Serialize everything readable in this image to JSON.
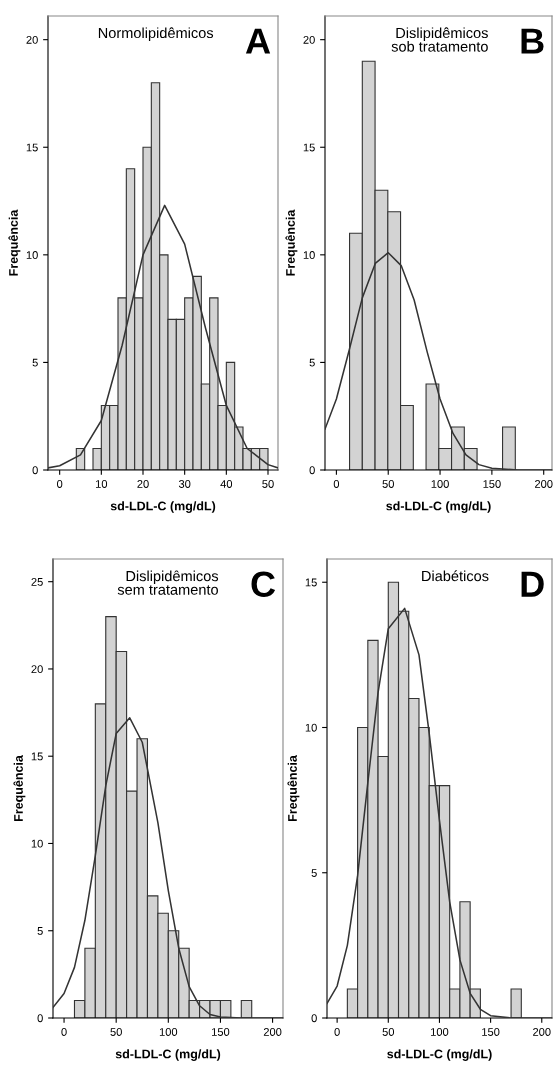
{
  "chart_data": [
    {
      "type": "histogram",
      "title": "Normolipidêmicos",
      "annotations": [
        "A"
      ],
      "xlabel": "sd-LDL-C (mg/dL)",
      "ylabel": "Frequência",
      "xlim": [
        -2.8,
        52.4
      ],
      "ylim": [
        0,
        21.1
      ],
      "xticks": [
        0,
        10,
        20,
        30,
        40,
        50
      ],
      "yticks": [
        0,
        5,
        10,
        15,
        20
      ],
      "grid": false,
      "legend": false,
      "series": [
        {
          "color": "#d3d3d3",
          "bins": [
            4,
            6,
            8,
            10,
            12,
            14,
            16,
            18,
            20,
            22,
            24,
            26,
            28,
            30,
            32,
            34,
            36,
            38,
            40,
            42,
            44,
            46,
            48,
            50
          ],
          "values": [
            1,
            0,
            1,
            3,
            3,
            8,
            14,
            8,
            15,
            18,
            10,
            7,
            7,
            8,
            9,
            4,
            8,
            3,
            5,
            2,
            1,
            1,
            1
          ]
        },
        {
          "type": "line",
          "color": "#333333",
          "x": [
            -2.8,
            0,
            5,
            10,
            15,
            20,
            25.2,
            30,
            35,
            40,
            45,
            50,
            52.4
          ],
          "values": [
            0.1,
            0.2,
            0.7,
            2.3,
            5.8,
            10.0,
            12.3,
            10.5,
            6.6,
            3.0,
            1.0,
            0.25,
            0.1
          ]
        }
      ]
    },
    {
      "type": "histogram",
      "title": "Dislipidêmicos\nsob tratamento",
      "annotations": [
        "B"
      ],
      "xlabel": "sd-LDL-C (mg/dL)",
      "ylabel": "Frequência",
      "xlim": [
        -11,
        208
      ],
      "ylim": [
        0,
        21.1
      ],
      "xticks": [
        0,
        50,
        100,
        150,
        200
      ],
      "yticks": [
        0,
        5,
        10,
        15,
        20
      ],
      "grid": false,
      "legend": false,
      "series": [
        {
          "color": "#d3d3d3",
          "bins": [
            12.7,
            25,
            37.3,
            49.6,
            61.9,
            74.2,
            86.5,
            98.8,
            111.1,
            123.4,
            135.7,
            148,
            160.3,
            172.6
          ],
          "values": [
            11,
            19,
            13,
            12,
            3,
            0,
            4,
            1,
            2,
            1,
            0,
            0,
            2
          ]
        },
        {
          "type": "line",
          "color": "#333333",
          "x": [
            -11,
            0,
            12.5,
            25,
            37.5,
            50,
            62.5,
            75,
            87.5,
            100,
            112.5,
            125,
            137.5,
            150,
            175,
            208
          ],
          "values": [
            1.9,
            3.3,
            5.6,
            8.0,
            9.6,
            10.1,
            9.5,
            7.9,
            5.5,
            3.3,
            1.7,
            0.7,
            0.25,
            0.08,
            0,
            0
          ]
        }
      ]
    },
    {
      "type": "histogram",
      "title": "Dislipidêmicos\nsem tratamento",
      "annotations": [
        "C"
      ],
      "xlabel": "sd-LDL-C (mg/dL)",
      "ylabel": "Frequência",
      "xlim": [
        -10.6,
        210
      ],
      "ylim": [
        0,
        26.3
      ],
      "xticks": [
        0,
        50,
        100,
        150,
        200
      ],
      "yticks": [
        0,
        5,
        10,
        15,
        20,
        25
      ],
      "grid": false,
      "legend": false,
      "series": [
        {
          "type": "histogram",
          "color": "#d3d3d3",
          "bins": [
            10,
            20,
            30,
            40,
            50,
            60,
            70,
            80,
            90,
            100,
            110,
            120,
            130,
            140,
            150,
            160,
            170,
            180
          ],
          "values": [
            1,
            4,
            18,
            23,
            21,
            13,
            16,
            7,
            6,
            5,
            4,
            1,
            1,
            1,
            1,
            0,
            1
          ]
        },
        {
          "type": "line",
          "color": "#333333",
          "x": [
            -10.6,
            0,
            10,
            20,
            30,
            40,
            50,
            63,
            75,
            90,
            100,
            110,
            120,
            130,
            140,
            150,
            170,
            210
          ],
          "values": [
            0.6,
            1.4,
            2.9,
            5.6,
            9.3,
            13.3,
            16.3,
            17.2,
            15.8,
            11.2,
            7.3,
            4.0,
            1.8,
            0.7,
            0.2,
            0.06,
            0,
            0
          ]
        }
      ]
    },
    {
      "type": "histogram",
      "title": "Diabéticos",
      "annotations": [
        "D"
      ],
      "xlabel": "sd-LDL-C (mg/dL)",
      "ylabel": "Frequência",
      "xlim": [
        -9.9,
        210
      ],
      "ylim": [
        0,
        15.8
      ],
      "xticks": [
        0,
        50,
        100,
        150,
        200
      ],
      "yticks": [
        0,
        5,
        10,
        15
      ],
      "grid": false,
      "legend": false,
      "series": [
        {
          "type": "histogram",
          "color": "#d3d3d3",
          "bins": [
            10,
            20,
            30,
            40,
            50,
            60,
            70,
            80,
            90,
            100,
            110,
            120,
            130,
            140,
            150,
            160,
            170,
            180
          ],
          "values": [
            1,
            10,
            13,
            9,
            15,
            14,
            11,
            10,
            8,
            8,
            1,
            4,
            1,
            0,
            0,
            0,
            1
          ]
        },
        {
          "type": "line",
          "color": "#333333",
          "x": [
            -9.9,
            0,
            10,
            20,
            30,
            40,
            50,
            66,
            80,
            90,
            100,
            110,
            120,
            130,
            140,
            150,
            170,
            210
          ],
          "values": [
            0.5,
            1.1,
            2.5,
            4.9,
            8.1,
            11.2,
            13.4,
            14.1,
            12.5,
            9.8,
            6.8,
            4.0,
            2.0,
            0.85,
            0.3,
            0.08,
            0,
            0
          ]
        }
      ]
    }
  ]
}
